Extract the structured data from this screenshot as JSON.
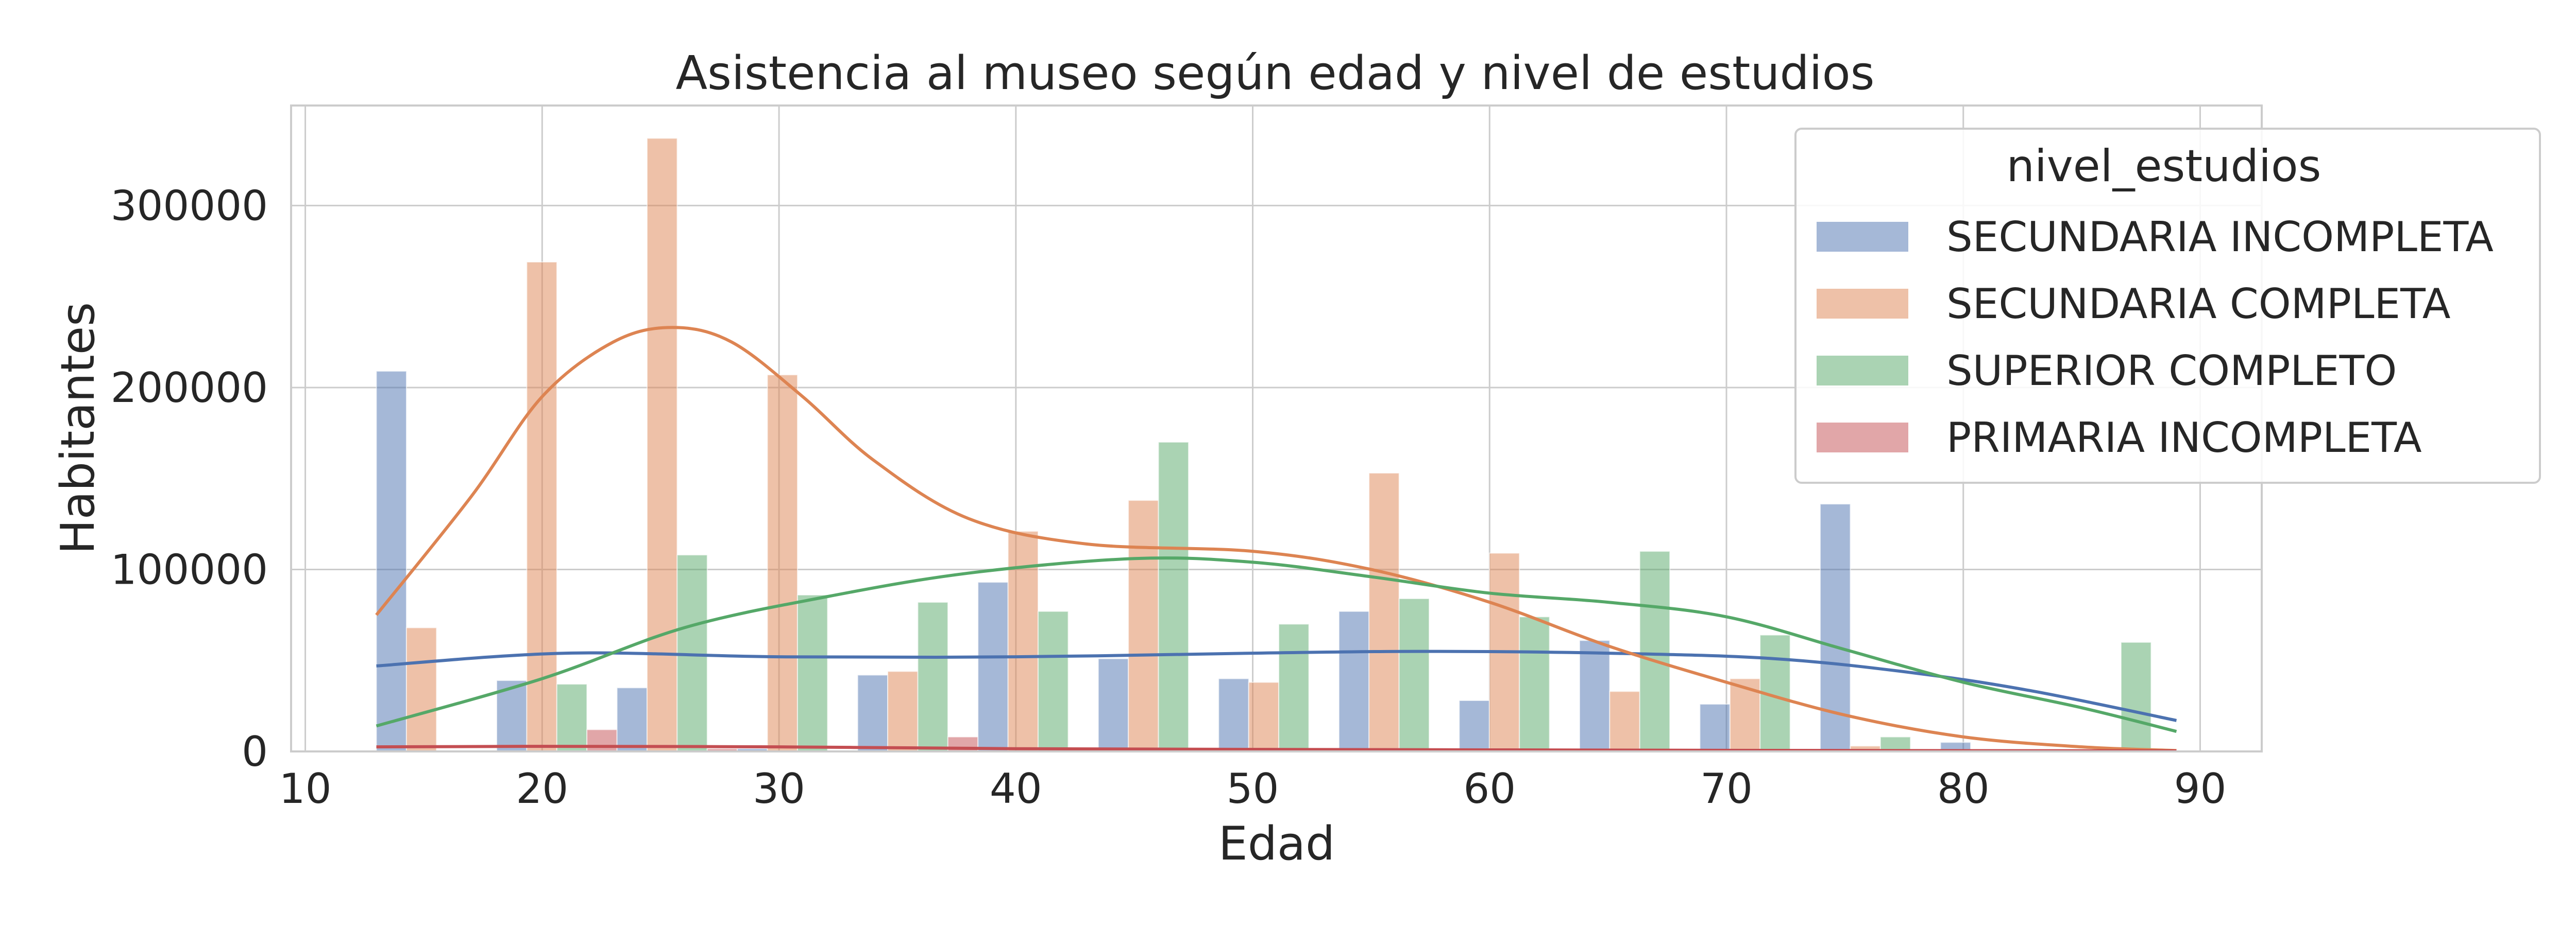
{
  "chart_data": {
    "type": "bar",
    "title": "Asistencia al museo según edad y nivel de estudios",
    "xlabel": "Edad",
    "ylabel": "Habitantes",
    "xlim": [
      9.4,
      92.6
    ],
    "ylim": [
      0,
      355000
    ],
    "xticks": [
      10,
      20,
      30,
      40,
      50,
      60,
      70,
      80,
      90
    ],
    "yticks": [
      0,
      100000,
      200000,
      300000
    ],
    "grid": true,
    "legend": {
      "title": "nivel_estudios",
      "placement": "top-right"
    },
    "bin_edges": [
      13,
      18.08,
      23.16,
      28.24,
      33.32,
      38.4,
      43.48,
      48.56,
      53.64,
      58.72,
      63.8,
      68.88,
      73.96,
      79.04,
      84.12,
      89.2
    ],
    "series": [
      {
        "name": "SECUNDARIA INCOMPLETA",
        "color": "#4c72b0",
        "values": [
          209000,
          39000,
          35000,
          1500,
          42000,
          93000,
          51000,
          40000,
          77000,
          28000,
          61000,
          26000,
          136000,
          5000,
          0
        ],
        "kde": [
          [
            13,
            47000
          ],
          [
            21,
            54000
          ],
          [
            30,
            52000
          ],
          [
            40,
            52000
          ],
          [
            50,
            54000
          ],
          [
            57,
            55000
          ],
          [
            65,
            54000
          ],
          [
            72,
            51000
          ],
          [
            78,
            43000
          ],
          [
            83,
            33000
          ],
          [
            89,
            17000
          ]
        ]
      },
      {
        "name": "SECUNDARIA COMPLETA",
        "color": "#dd8452",
        "values": [
          68000,
          269000,
          337000,
          207000,
          44000,
          121000,
          138000,
          38000,
          153000,
          109000,
          33000,
          40000,
          3000,
          0,
          0
        ],
        "kde": [
          [
            13,
            75000
          ],
          [
            17,
            140000
          ],
          [
            20,
            195000
          ],
          [
            23,
            225000
          ],
          [
            25.5,
            233000
          ],
          [
            28,
            225000
          ],
          [
            31,
            195000
          ],
          [
            34,
            160000
          ],
          [
            38,
            128000
          ],
          [
            43,
            114000
          ],
          [
            50,
            110000
          ],
          [
            55,
            100000
          ],
          [
            60,
            82000
          ],
          [
            65,
            58000
          ],
          [
            70,
            38000
          ],
          [
            75,
            20000
          ],
          [
            80,
            8000
          ],
          [
            85,
            2500
          ],
          [
            89,
            500
          ]
        ]
      },
      {
        "name": "SUPERIOR COMPLETO",
        "color": "#55a868",
        "values": [
          0,
          37000,
          108000,
          86000,
          82000,
          77000,
          170000,
          70000,
          84000,
          74000,
          110000,
          64000,
          8000,
          0,
          60000
        ],
        "kde": [
          [
            13,
            14000
          ],
          [
            20,
            40000
          ],
          [
            26,
            68000
          ],
          [
            32,
            85000
          ],
          [
            38,
            98000
          ],
          [
            45,
            106000
          ],
          [
            50,
            104000
          ],
          [
            55,
            96000
          ],
          [
            60,
            87000
          ],
          [
            65,
            82000
          ],
          [
            70,
            74000
          ],
          [
            75,
            56000
          ],
          [
            80,
            38000
          ],
          [
            85,
            24000
          ],
          [
            89,
            11000
          ]
        ]
      },
      {
        "name": "PRIMARIA INCOMPLETA",
        "color": "#c44e52",
        "values": [
          0,
          12000,
          1500,
          0,
          8000,
          1000,
          0,
          0,
          0,
          0,
          0,
          0,
          0,
          0,
          0
        ],
        "kde": [
          [
            13,
            2500
          ],
          [
            20,
            2800
          ],
          [
            30,
            2500
          ],
          [
            40,
            1500
          ],
          [
            55,
            1000
          ],
          [
            70,
            600
          ],
          [
            89,
            300
          ]
        ]
      }
    ]
  }
}
